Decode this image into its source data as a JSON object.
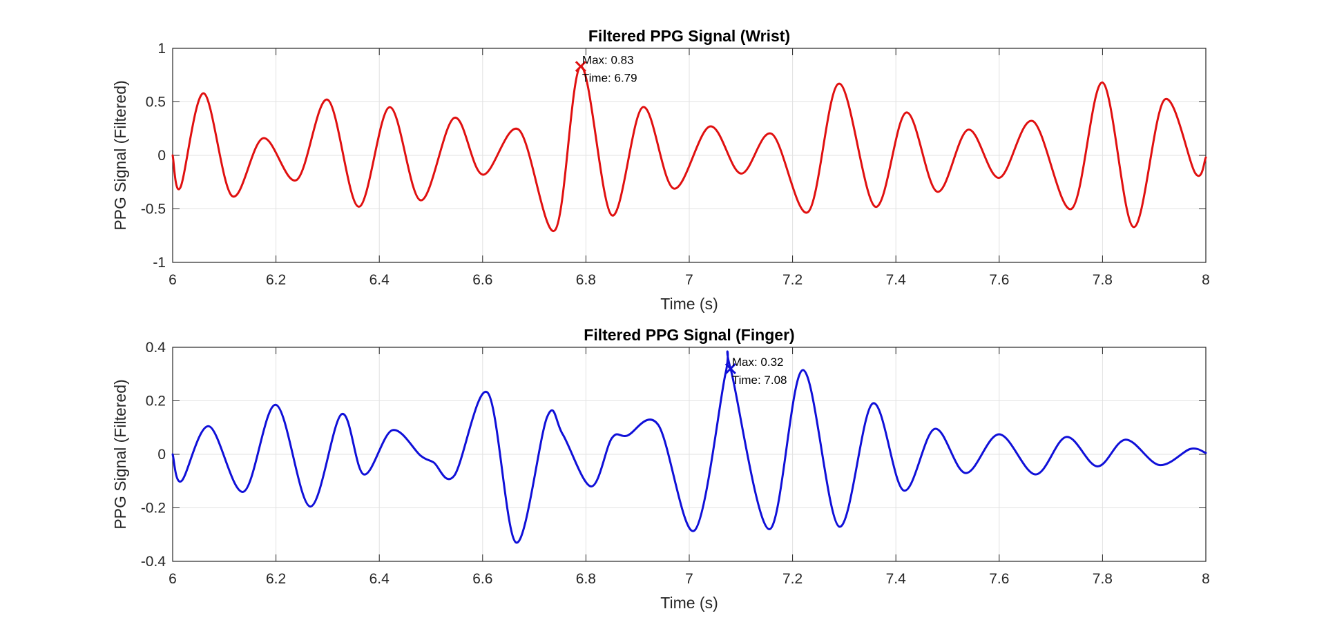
{
  "chart_data": [
    {
      "type": "line",
      "title": "Filtered PPG Signal (Wrist)",
      "xlabel": "Time (s)",
      "ylabel": "PPG Signal (Filtered)",
      "xlim": [
        6,
        8
      ],
      "ylim": [
        -1,
        1
      ],
      "xticks": [
        "6",
        "6.2",
        "6.4",
        "6.6",
        "6.8",
        "7",
        "7.2",
        "7.4",
        "7.6",
        "7.8",
        "8"
      ],
      "yticks": [
        "-1",
        "-0.5",
        "0",
        "0.5",
        "1"
      ],
      "grid": true,
      "line_color": "#e01010",
      "series": [
        {
          "x": [
            6.0,
            6.015,
            6.06,
            6.115,
            6.175,
            6.24,
            6.3,
            6.36,
            6.42,
            6.48,
            6.545,
            6.6,
            6.67,
            6.74,
            6.79,
            6.85,
            6.91,
            6.97,
            7.04,
            7.1,
            7.16,
            7.23,
            7.29,
            7.36,
            7.42,
            7.48,
            7.54,
            7.6,
            7.665,
            7.74,
            7.8,
            7.86,
            7.92,
            7.98,
            8.0
          ],
          "y": [
            0.0,
            -0.3,
            0.58,
            -0.38,
            0.16,
            -0.23,
            0.52,
            -0.48,
            0.45,
            -0.42,
            0.35,
            -0.18,
            0.24,
            -0.7,
            0.83,
            -0.56,
            0.45,
            -0.31,
            0.27,
            -0.17,
            0.2,
            -0.53,
            0.67,
            -0.48,
            0.4,
            -0.34,
            0.24,
            -0.21,
            0.32,
            -0.5,
            0.68,
            -0.67,
            0.52,
            -0.17,
            -0.02
          ]
        }
      ],
      "marker": {
        "x": 6.79,
        "y": 0.83,
        "symbol": "x"
      },
      "annotation_lines": [
        "Max: 0.83",
        "Time: 6.79"
      ]
    },
    {
      "type": "line",
      "title": "Filtered PPG Signal (Finger)",
      "xlabel": "Time (s)",
      "ylabel": "PPG Signal (Filtered)",
      "xlim": [
        6,
        8
      ],
      "ylim": [
        -0.4,
        0.4
      ],
      "xticks": [
        "6",
        "6.2",
        "6.4",
        "6.6",
        "6.8",
        "7",
        "7.2",
        "7.4",
        "7.6",
        "7.8",
        "8"
      ],
      "yticks": [
        "-0.4",
        "-0.2",
        "0",
        "0.2",
        "0.4"
      ],
      "grid": true,
      "line_color": "#1010d8",
      "series": [
        {
          "x": [
            6.0,
            6.017,
            6.07,
            6.137,
            6.2,
            6.266,
            6.327,
            6.37,
            6.425,
            6.48,
            6.505,
            6.545,
            6.61,
            6.665,
            6.725,
            6.755,
            6.81,
            6.85,
            6.88,
            6.94,
            7.01,
            7.07,
            7.08,
            7.155,
            7.22,
            7.29,
            7.355,
            7.415,
            7.475,
            7.535,
            7.6,
            7.67,
            7.73,
            7.79,
            7.845,
            7.91,
            7.97,
            8.0
          ],
          "y": [
            0.0,
            -0.1,
            0.105,
            -0.14,
            0.185,
            -0.195,
            0.15,
            -0.075,
            0.09,
            -0.005,
            -0.03,
            -0.08,
            0.23,
            -0.33,
            0.14,
            0.075,
            -0.12,
            0.06,
            0.07,
            0.11,
            -0.285,
            0.3,
            0.32,
            -0.28,
            0.315,
            -0.27,
            0.19,
            -0.135,
            0.095,
            -0.07,
            0.075,
            -0.075,
            0.065,
            -0.045,
            0.055,
            -0.04,
            0.02,
            0.005
          ]
        }
      ],
      "marker": {
        "x": 7.08,
        "y": 0.32,
        "symbol": "x"
      },
      "annotation_lines": [
        "Max: 0.32",
        "Time: 7.08"
      ]
    }
  ]
}
